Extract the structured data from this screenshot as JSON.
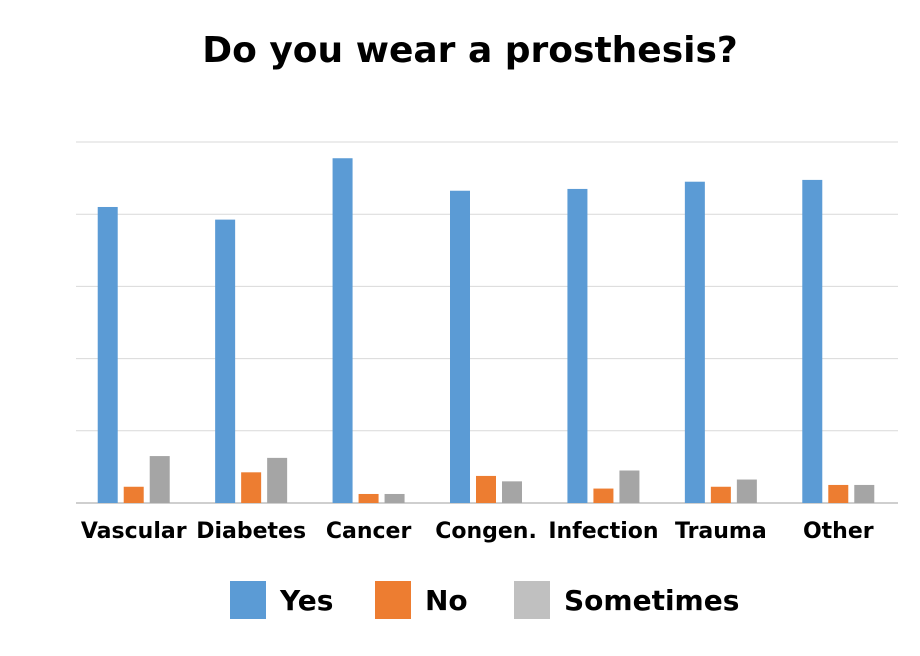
{
  "chart_data": {
    "type": "bar",
    "title": "Do you wear a prosthesis?",
    "categories": [
      "Vascular",
      "Diabetes",
      "Cancer",
      "Congen.",
      "Infection",
      "Trauma",
      "Other"
    ],
    "series": [
      {
        "name": "Yes",
        "color": "#5b9bd5",
        "values": [
          82,
          78.5,
          95.5,
          86.5,
          87,
          89,
          89.5
        ]
      },
      {
        "name": "No",
        "color": "#ed7d31",
        "values": [
          4.5,
          8.5,
          2.5,
          7.5,
          4,
          4.5,
          5
        ]
      },
      {
        "name": "Sometimes",
        "color": "#a5a5a5",
        "values": [
          13,
          12.5,
          2.5,
          6,
          9,
          6.5,
          5
        ]
      }
    ],
    "ylim": [
      0,
      100
    ],
    "yticks": [
      0,
      20,
      40,
      60,
      80,
      100
    ],
    "ytick_labels_visible": false,
    "grid": true,
    "legend": "bottom"
  }
}
